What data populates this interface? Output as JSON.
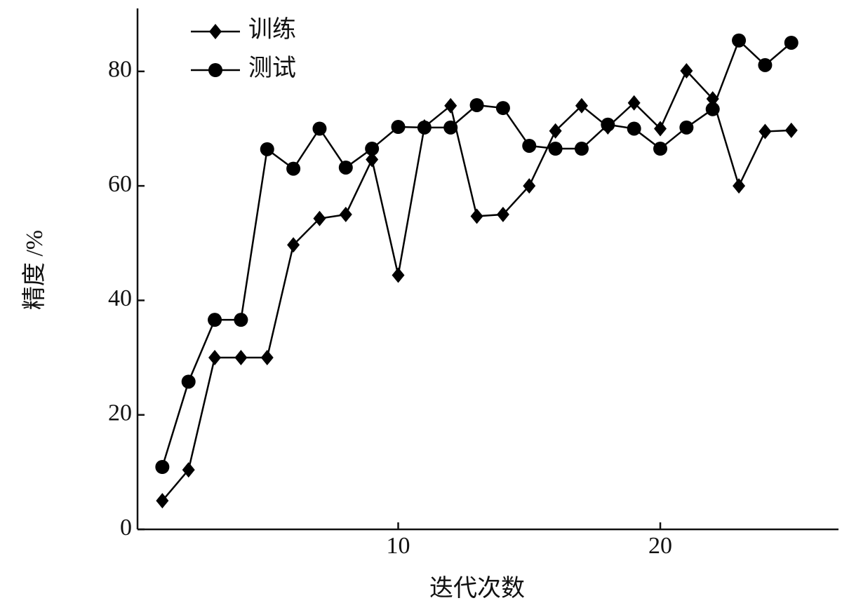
{
  "chart_data": {
    "type": "line",
    "x_label": "迭代次数",
    "y_label": "精度 /%",
    "x": [
      1,
      2,
      3,
      4,
      5,
      6,
      7,
      8,
      9,
      10,
      11,
      12,
      13,
      14,
      15,
      16,
      17,
      18,
      19,
      20,
      21,
      22,
      23,
      24,
      25
    ],
    "series": [
      {
        "name": "训练",
        "color": "#000000",
        "marker": "diamond",
        "values": [
          5.0,
          10.4,
          30,
          30,
          30,
          49.7,
          54.3,
          55,
          64.6,
          44.4,
          70.3,
          74,
          54.7,
          55,
          60,
          69.6,
          74,
          70.3,
          74.5,
          70,
          80.1,
          75.2,
          60,
          69.5,
          69.7
        ]
      },
      {
        "name": "测试",
        "color": "#000000",
        "marker": "circle",
        "values": [
          10.9,
          25.8,
          36.6,
          36.6,
          66.4,
          63,
          70,
          63.2,
          66.5,
          70.3,
          70.2,
          70.2,
          74.1,
          73.6,
          67,
          66.5,
          66.5,
          70.7,
          70,
          66.5,
          70.2,
          73.4,
          85.4,
          81.1,
          85
        ]
      }
    ],
    "xlim": [
      0,
      26.8
    ],
    "ylim": [
      0,
      91
    ],
    "xticks": [
      10,
      20
    ],
    "yticks": [
      0,
      20,
      40,
      60,
      80
    ],
    "legend": "upper left"
  }
}
